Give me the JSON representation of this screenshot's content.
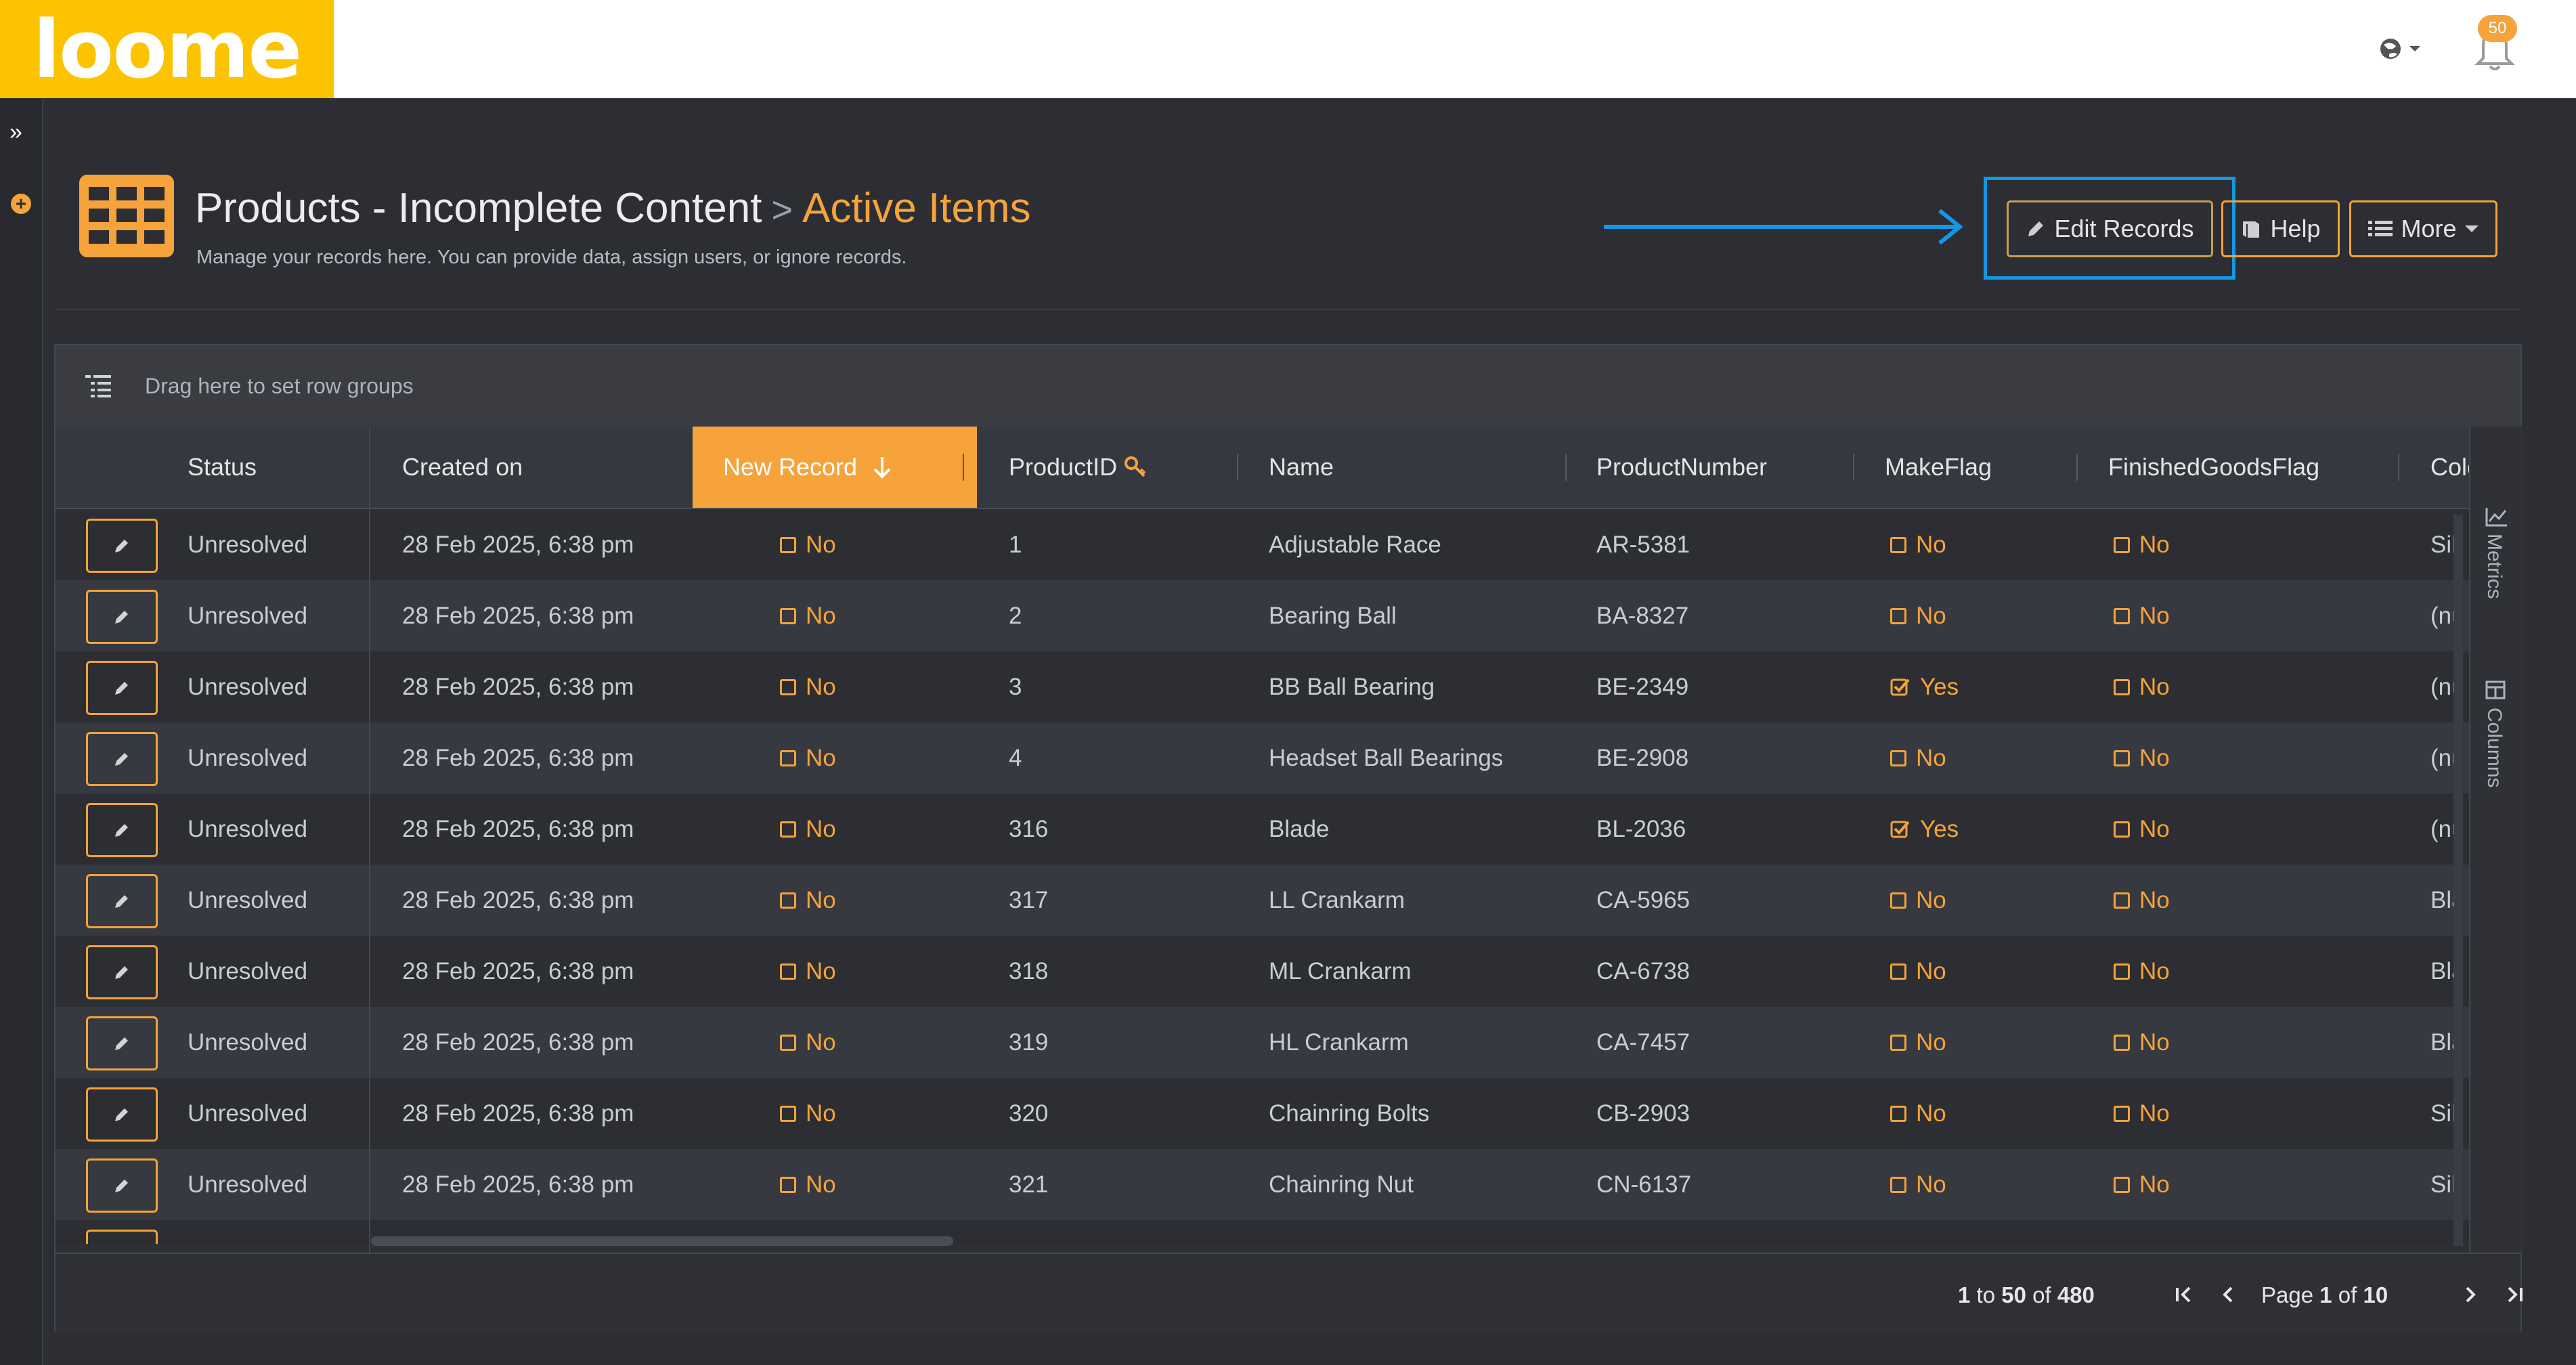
{
  "app": {
    "logo_text": "loome",
    "notification_count": "50"
  },
  "header": {
    "title": "Products - Incomplete Content",
    "separator": ">",
    "active_view": "Active Items",
    "subtitle": "Manage your records here. You can provide data, assign users, or ignore records.",
    "buttons": {
      "edit": "Edit Records",
      "help": "Help",
      "more": "More"
    }
  },
  "grid": {
    "group_placeholder": "Drag here to set row groups",
    "columns": {
      "status": "Status",
      "created_on": "Created on",
      "new_record": "New Record",
      "product_id": "ProductID",
      "name": "Name",
      "product_number": "ProductNumber",
      "make_flag": "MakeFlag",
      "finished_goods_flag": "FinishedGoodsFlag",
      "color": "Colo"
    },
    "rows": [
      {
        "status": "Unresolved",
        "created": "28 Feb 2025, 6:38 pm",
        "new_record": "No",
        "id": "1",
        "name": "Adjustable Race",
        "number": "AR-5381",
        "make": "No",
        "make_checked": false,
        "finished": "No",
        "color": "Sil"
      },
      {
        "status": "Unresolved",
        "created": "28 Feb 2025, 6:38 pm",
        "new_record": "No",
        "id": "2",
        "name": "Bearing Ball",
        "number": "BA-8327",
        "make": "No",
        "make_checked": false,
        "finished": "No",
        "color": "(nu"
      },
      {
        "status": "Unresolved",
        "created": "28 Feb 2025, 6:38 pm",
        "new_record": "No",
        "id": "3",
        "name": "BB Ball Bearing",
        "number": "BE-2349",
        "make": "Yes",
        "make_checked": true,
        "finished": "No",
        "color": "(nu"
      },
      {
        "status": "Unresolved",
        "created": "28 Feb 2025, 6:38 pm",
        "new_record": "No",
        "id": "4",
        "name": "Headset Ball Bearings",
        "number": "BE-2908",
        "make": "No",
        "make_checked": false,
        "finished": "No",
        "color": "(nu"
      },
      {
        "status": "Unresolved",
        "created": "28 Feb 2025, 6:38 pm",
        "new_record": "No",
        "id": "316",
        "name": "Blade",
        "number": "BL-2036",
        "make": "Yes",
        "make_checked": true,
        "finished": "No",
        "color": "(nu"
      },
      {
        "status": "Unresolved",
        "created": "28 Feb 2025, 6:38 pm",
        "new_record": "No",
        "id": "317",
        "name": "LL Crankarm",
        "number": "CA-5965",
        "make": "No",
        "make_checked": false,
        "finished": "No",
        "color": "Bla"
      },
      {
        "status": "Unresolved",
        "created": "28 Feb 2025, 6:38 pm",
        "new_record": "No",
        "id": "318",
        "name": "ML Crankarm",
        "number": "CA-6738",
        "make": "No",
        "make_checked": false,
        "finished": "No",
        "color": "Bla"
      },
      {
        "status": "Unresolved",
        "created": "28 Feb 2025, 6:38 pm",
        "new_record": "No",
        "id": "319",
        "name": "HL Crankarm",
        "number": "CA-7457",
        "make": "No",
        "make_checked": false,
        "finished": "No",
        "color": "Bla"
      },
      {
        "status": "Unresolved",
        "created": "28 Feb 2025, 6:38 pm",
        "new_record": "No",
        "id": "320",
        "name": "Chainring Bolts",
        "number": "CB-2903",
        "make": "No",
        "make_checked": false,
        "finished": "No",
        "color": "Sil"
      },
      {
        "status": "Unresolved",
        "created": "28 Feb 2025, 6:38 pm",
        "new_record": "No",
        "id": "321",
        "name": "Chainring Nut",
        "number": "CN-6137",
        "make": "No",
        "make_checked": false,
        "finished": "No",
        "color": "Sil"
      }
    ],
    "side_tools": {
      "metrics": "Metrics",
      "columns": "Columns"
    },
    "pagination": {
      "range_start": "1",
      "range_to": "to",
      "range_end": "50",
      "range_of": "of",
      "total": "480",
      "page_label": "Page",
      "page": "1",
      "page_of": "of",
      "page_count": "10"
    }
  }
}
